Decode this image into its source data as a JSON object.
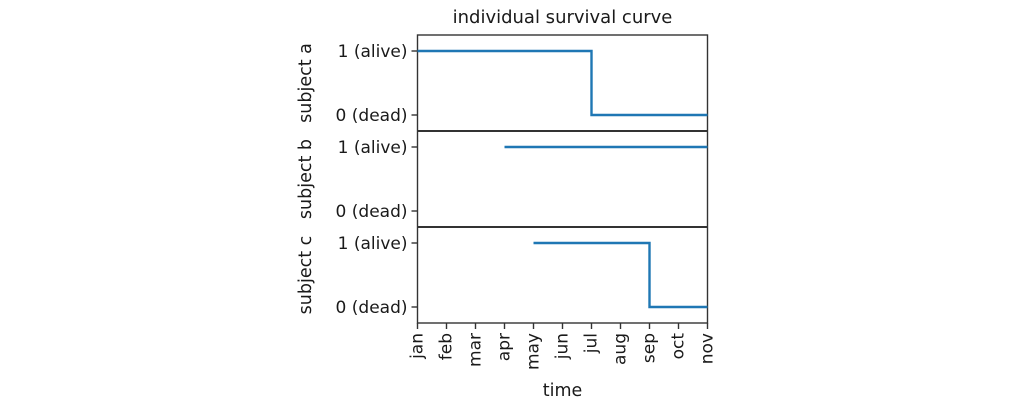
{
  "figure": {
    "background_color": "#ffffff",
    "text_color": "#1a1a1a",
    "spine_color": "#333333"
  },
  "chart_data": {
    "type": "line",
    "subtype": "step-survival",
    "title": "individual survival curve",
    "xlabel": "time",
    "x_categories": [
      "jan",
      "feb",
      "mar",
      "apr",
      "may",
      "jun",
      "jul",
      "aug",
      "sep",
      "oct",
      "nov"
    ],
    "y_tick_values": [
      1,
      0
    ],
    "y_tick_labels": [
      "1 (alive)",
      "0 (dead)"
    ],
    "ylim": [
      -0.25,
      1.25
    ],
    "grid": false,
    "legend": null,
    "line_color": "#1f77b4",
    "subplots": [
      {
        "ylabel": "subject a",
        "points": [
          {
            "x": "jan",
            "y": 1
          },
          {
            "x": "jul",
            "y": 1
          },
          {
            "x": "jul",
            "y": 0
          },
          {
            "x": "nov",
            "y": 0
          }
        ]
      },
      {
        "ylabel": "subject b",
        "points": [
          {
            "x": "apr",
            "y": 1
          },
          {
            "x": "nov",
            "y": 1
          }
        ]
      },
      {
        "ylabel": "subject c",
        "points": [
          {
            "x": "may",
            "y": 1
          },
          {
            "x": "sep",
            "y": 1
          },
          {
            "x": "sep",
            "y": 0
          },
          {
            "x": "nov",
            "y": 0
          }
        ]
      }
    ]
  }
}
